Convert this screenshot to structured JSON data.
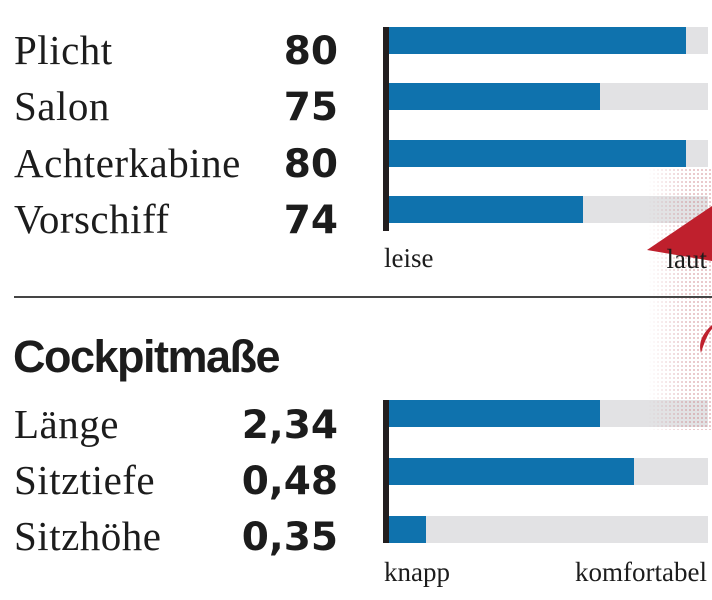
{
  "colors": {
    "bar_blue": "#0f72ad",
    "track_gray": "#e2e2e4",
    "accent_red": "#bf202d",
    "axis_black": "#221e1f",
    "text": "#1c1c1c"
  },
  "chart_data": [
    {
      "type": "bar",
      "title": "",
      "categories": [
        "Plicht",
        "Salon",
        "Achterkabine",
        "Vorschiff"
      ],
      "values": [
        80,
        75,
        80,
        74
      ],
      "value_labels": [
        "80",
        "75",
        "80",
        "74"
      ],
      "bar_fractions": [
        0.931,
        0.661,
        0.931,
        0.608
      ],
      "bar_pcts": [
        "93.1%",
        "66.1%",
        "93.1%",
        "60.8%"
      ],
      "scale_min_label": "leise",
      "scale_max_label": "laut",
      "orientation": "horizontal",
      "legend": "none",
      "grid": "off"
    },
    {
      "type": "bar",
      "title": "Cockpitmaße",
      "categories": [
        "Länge",
        "Sitztiefe",
        "Sitzhöhe"
      ],
      "values": [
        2.34,
        0.48,
        0.35
      ],
      "value_labels": [
        "2,34",
        "0,48",
        "0,35"
      ],
      "bar_fractions": [
        0.661,
        0.768,
        0.116
      ],
      "bar_pcts": [
        "66.1%",
        "76.8%",
        "11.6%"
      ],
      "scale_min_label": "knapp",
      "scale_max_label": "komfortabel",
      "orientation": "horizontal",
      "legend": "none",
      "grid": "off"
    }
  ]
}
